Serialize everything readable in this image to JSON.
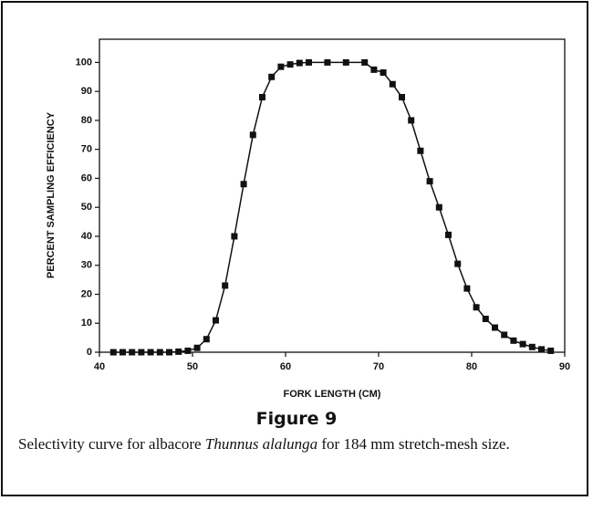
{
  "chart_data": {
    "type": "line",
    "x_label": "FORK LENGTH (CM)",
    "y_label": "PERCENT SAMPLING EFFICIENCY",
    "figure_label": "Figure 9",
    "caption": [
      "Selectivity curve for albacore ",
      "Thunnus alalunga",
      " for 184 mm stretch-mesh size."
    ],
    "x": [
      41.5,
      42.5,
      43.5,
      44.5,
      45.5,
      46.5,
      47.5,
      48.5,
      49.5,
      50.5,
      51.5,
      52.5,
      53.5,
      54.5,
      55.5,
      56.5,
      57.5,
      58.5,
      59.5,
      60.5,
      61.5,
      62.5,
      64.5,
      66.5,
      68.5,
      69.5,
      70.5,
      71.5,
      72.5,
      73.5,
      74.5,
      75.5,
      76.5,
      77.5,
      78.5,
      79.5,
      80.5,
      81.5,
      82.5,
      83.5,
      84.5,
      85.5,
      86.5,
      87.5,
      88.5
    ],
    "series": [
      {
        "color": "#111111",
        "values": [
          0,
          0,
          0,
          0,
          0,
          0,
          0,
          0.2,
          0.5,
          1.5,
          4.5,
          11,
          23,
          40,
          58,
          75,
          88,
          95,
          98.5,
          99.3,
          99.8,
          100,
          100,
          100,
          100,
          97.5,
          96.5,
          92.5,
          88,
          80,
          69.5,
          59,
          50,
          40.5,
          30.5,
          22,
          15.5,
          11.5,
          8.5,
          6,
          4,
          2.8,
          1.8,
          1,
          0.5
        ]
      }
    ],
    "xlim": [
      40,
      90
    ],
    "ylim": [
      0,
      108
    ],
    "xticks": [
      40,
      50,
      60,
      70,
      80,
      90
    ],
    "yticks": [
      0,
      10,
      20,
      30,
      40,
      50,
      60,
      70,
      80,
      90,
      100
    ],
    "markers": true
  }
}
